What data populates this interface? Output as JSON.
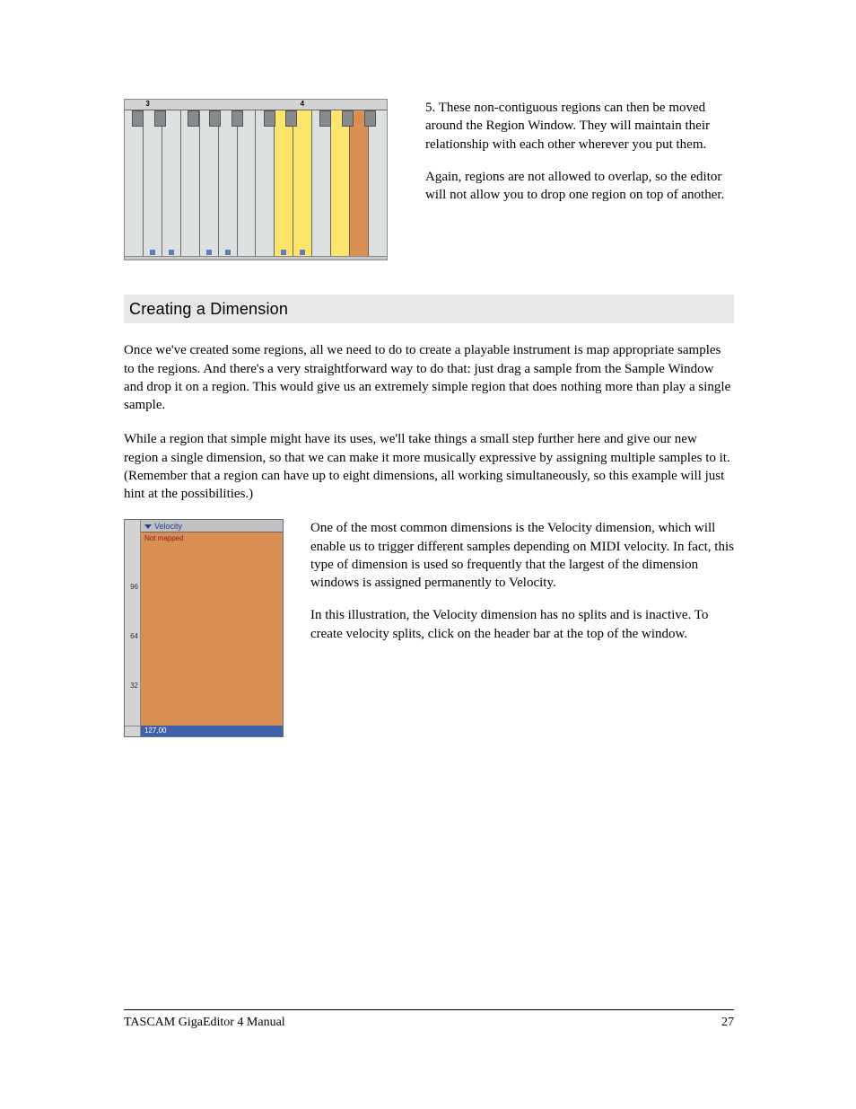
{
  "para_step5": "5. These non-contiguous regions can then be moved around the Region Window.  They will maintain their relationship with each other wherever you put them.",
  "para_overlap": "Again, regions are not allowed to overlap, so the editor will not allow you to drop one region on top of another.",
  "heading_creating": "Creating a Dimension",
  "para_once": "Once we've created some regions, all we need to do to create a playable instrument is map appropriate samples to the regions.  And there's a very straightforward way to do that: just drag a sample from the Sample Window and drop it on a region.  This would give us an extremely simple region that does nothing more than play a single sample.",
  "para_while": "While a region that simple might have its uses, we'll take things a small step further here and give our new region a single dimension, so that we can make it more musically expressive by assigning multiple samples to it.  (Remember that a region can have up to eight dimensions, all working simultaneously, so this example will just hint at the possibilities.)",
  "para_common": "One of the most common dimensions is the Velocity dimension, which will enable us to trigger different samples depending on MIDI velocity.  In fact, this type of dimension is used so frequently that the largest of the dimension windows is assigned permanently to Velocity.",
  "para_illus": "In this illustration, the Velocity dimension has no splits and is inactive.  To create velocity splits, click on the header bar at the top of the window.",
  "footer_title": "TASCAM GigaEditor 4 Manual",
  "footer_page": "27",
  "kbd": {
    "octave_labels": [
      {
        "n": "3",
        "left_pct": 8
      },
      {
        "n": "4",
        "left_pct": 67
      }
    ],
    "whites": [
      {
        "dot": false,
        "cls": ""
      },
      {
        "dot": true,
        "cls": ""
      },
      {
        "dot": true,
        "cls": ""
      },
      {
        "dot": false,
        "cls": ""
      },
      {
        "dot": true,
        "cls": ""
      },
      {
        "dot": true,
        "cls": ""
      },
      {
        "dot": false,
        "cls": ""
      },
      {
        "dot": false,
        "cls": ""
      },
      {
        "dot": true,
        "cls": "sel"
      },
      {
        "dot": true,
        "cls": "sel"
      },
      {
        "dot": false,
        "cls": ""
      },
      {
        "dot": false,
        "cls": "sel"
      },
      {
        "dot": false,
        "cls": "addsel"
      },
      {
        "dot": false,
        "cls": ""
      }
    ],
    "blacks_left_pct": [
      4.9,
      13.3,
      26.0,
      34.4,
      42.9,
      55.0,
      63.4,
      76.5,
      85.0,
      93.4
    ]
  },
  "velocity": {
    "header": "Velocity",
    "not_mapped": "Not mapped",
    "ticks": [
      "96",
      "64",
      "32"
    ],
    "footer": "127,00"
  }
}
